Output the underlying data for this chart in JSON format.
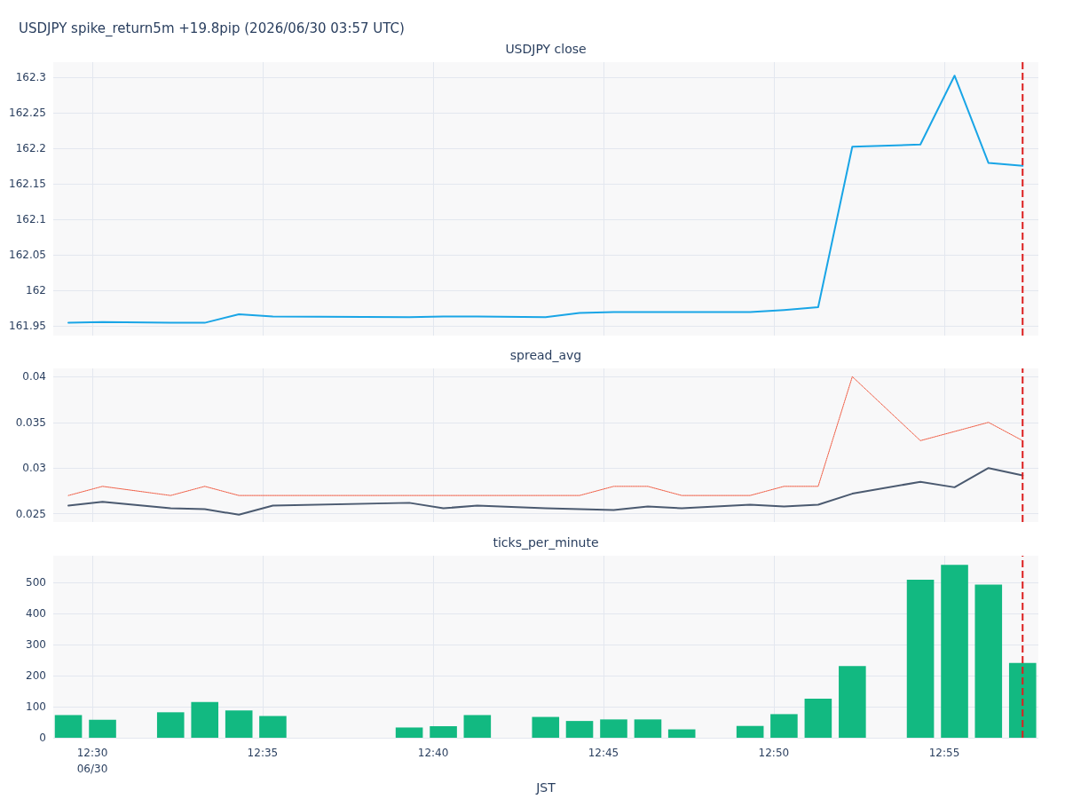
{
  "chart_data": [
    {
      "type": "line",
      "title": "USDJPY spike_return5m +19.8pip (2026/06/30 03:57 UTC)",
      "subtitle": "USDJPY close",
      "x": [
        12.4883,
        12.505,
        12.5383,
        12.555,
        12.5717,
        12.5883,
        12.655,
        12.6717,
        12.6883,
        12.7217,
        12.7383,
        12.755,
        12.7717,
        12.7883,
        12.8217,
        12.8383,
        12.855,
        12.8717,
        12.905,
        12.9217,
        12.9383,
        12.955
      ],
      "series": [
        {
          "color": "#19a5e6",
          "values": [
            161.954,
            161.955,
            161.954,
            161.954,
            161.966,
            161.963,
            161.962,
            161.963,
            161.963,
            161.962,
            161.968,
            161.969,
            161.969,
            161.969,
            161.969,
            161.972,
            161.976,
            162.202,
            162.205,
            162.302,
            162.179,
            162.175
          ]
        }
      ],
      "xlim": [
        12.4809,
        12.9627
      ],
      "xticks": [
        12.5,
        {
          "value": 12.5833,
          "label": null
        },
        {
          "value": 12.6667,
          "label": null
        },
        {
          "value": 12.75,
          "label": null
        },
        {
          "value": 12.8333,
          "label": null
        },
        {
          "value": 12.9167,
          "label": null
        }
      ],
      "ylim": [
        161.936,
        162.321
      ],
      "yticks": [
        161.95,
        162,
        162.05,
        162.1,
        162.15,
        162.2,
        162.25,
        162.3
      ],
      "tick_labels": "y",
      "grid": true,
      "marker": "none",
      "line_style": "solid",
      "ref_lines": [
        {
          "axis": "x",
          "value": 12.955,
          "color": "#dc1e1e",
          "line_style": "dashed"
        }
      ]
    },
    {
      "type": "line",
      "subtitle": "spread_avg",
      "x": [
        12.4883,
        12.505,
        12.5383,
        12.555,
        12.5717,
        12.5883,
        12.655,
        12.6717,
        12.6883,
        12.7217,
        12.7383,
        12.755,
        12.7717,
        12.7883,
        12.8217,
        12.8383,
        12.855,
        12.8717,
        12.905,
        12.9217,
        12.9383,
        12.955
      ],
      "series": [
        {
          "color": "#4b5a70",
          "line_style": "solid",
          "values": [
            0.0259,
            0.0263,
            0.0256,
            0.0255,
            0.0249,
            0.0259,
            0.0262,
            0.0256,
            0.0259,
            0.0256,
            0.0255,
            0.0254,
            0.0258,
            0.0256,
            0.026,
            0.0258,
            0.026,
            0.0272,
            0.0285,
            0.0279,
            0.03,
            0.0292
          ]
        },
        {
          "color": "#ef553b",
          "line_style": "dotted",
          "values": [
            0.027,
            0.028,
            0.027,
            0.028,
            0.027,
            0.027,
            0.027,
            0.027,
            0.027,
            0.027,
            0.027,
            0.028,
            0.028,
            0.027,
            0.027,
            0.028,
            0.028,
            0.04,
            0.033,
            0.034,
            0.035,
            0.033
          ]
        }
      ],
      "xlim": [
        12.4809,
        12.9627
      ],
      "xticks": [
        12.5,
        {
          "value": 12.5833,
          "label": null
        },
        {
          "value": 12.6667,
          "label": null
        },
        {
          "value": 12.75,
          "label": null
        },
        {
          "value": 12.8333,
          "label": null
        },
        {
          "value": 12.9167,
          "label": null
        }
      ],
      "ylim": [
        0.0241,
        0.0409
      ],
      "yticks": [
        0.025,
        0.03,
        0.035,
        0.04
      ],
      "tick_labels": "y",
      "grid": true,
      "marker": "none",
      "ref_lines": [
        {
          "axis": "x",
          "value": 12.955,
          "color": "#dc1e1e",
          "line_style": "dashed"
        }
      ]
    },
    {
      "type": "bar",
      "subtitle": "ticks_per_minute",
      "xlabel": "JST",
      "x": [
        12.4883,
        12.505,
        12.5383,
        12.555,
        12.5717,
        12.5883,
        12.655,
        12.6717,
        12.6883,
        12.7217,
        12.7383,
        12.755,
        12.7717,
        12.7883,
        12.8217,
        12.8383,
        12.855,
        12.8717,
        12.905,
        12.9217,
        12.9383,
        12.955
      ],
      "series": [
        {
          "color": "#12b981",
          "values": [
            73,
            58,
            82,
            115,
            88,
            70,
            33,
            37,
            73,
            67,
            54,
            59,
            59,
            27,
            38,
            76,
            126,
            231,
            509,
            557,
            493,
            241
          ]
        }
      ],
      "xlim": [
        12.4809,
        12.9627
      ],
      "xticks": [
        {
          "value": 12.5,
          "label": "12:30\n06/30"
        },
        {
          "value": 12.5833,
          "label": "12:35"
        },
        {
          "value": 12.6667,
          "label": "12:40"
        },
        {
          "value": 12.75,
          "label": "12:45"
        },
        {
          "value": 12.8333,
          "label": "12:50"
        },
        {
          "value": 12.9167,
          "label": "12:55"
        }
      ],
      "ylim": [
        0,
        586
      ],
      "yticks": [
        0,
        100,
        200,
        300,
        400,
        500
      ],
      "grid": true,
      "ref_lines": [
        {
          "axis": "x",
          "value": 12.955,
          "color": "#dc1e1e",
          "line_style": "dashed"
        }
      ]
    }
  ]
}
